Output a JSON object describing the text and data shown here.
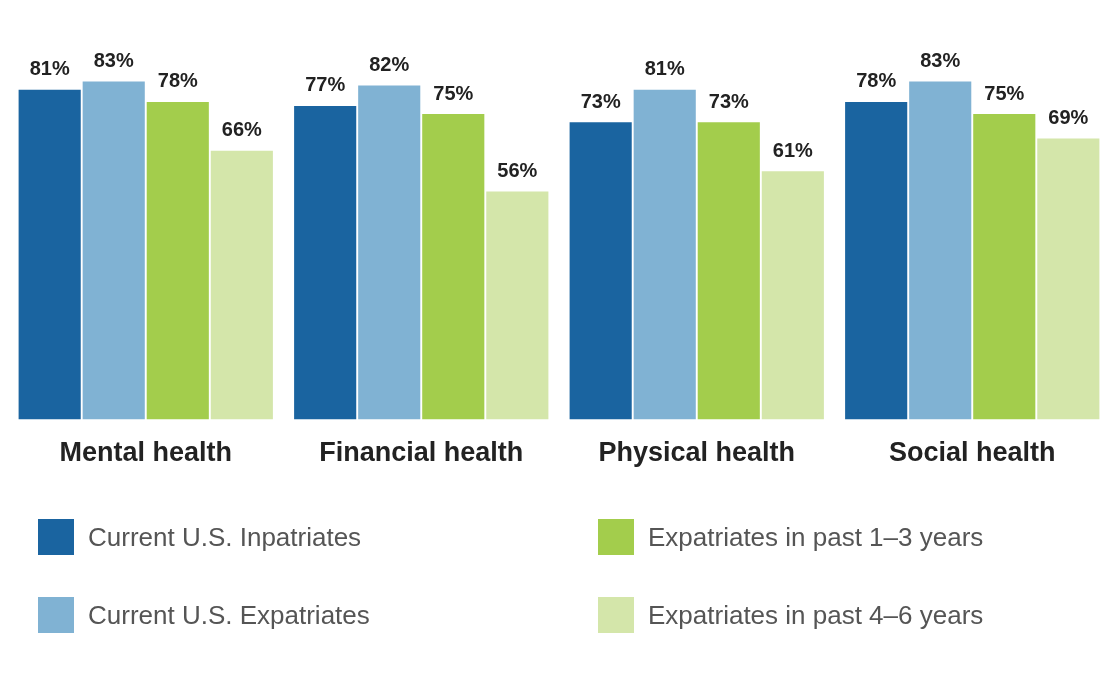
{
  "chart_data": {
    "type": "bar",
    "categories": [
      "Mental health",
      "Financial health",
      "Physical health",
      "Social health"
    ],
    "series": [
      {
        "name": "Current U.S. Inpatriates",
        "color": "#1a64a0",
        "values": [
          81,
          77,
          73,
          78
        ],
        "value_labels": [
          "81%",
          "77%",
          "73%",
          "78%"
        ]
      },
      {
        "name": "Current U.S. Expatriates",
        "color": "#80b2d3",
        "values": [
          83,
          82,
          81,
          83
        ],
        "value_labels": [
          "83%",
          "82%",
          "81%",
          "83%"
        ]
      },
      {
        "name": "Expatriates in past 1–3 years",
        "color": "#a3cd4c",
        "values": [
          78,
          75,
          73,
          75
        ],
        "value_labels": [
          "78%",
          "75%",
          "73%",
          "75%"
        ]
      },
      {
        "name": "Expatriates in past 4–6 years",
        "color": "#d4e6aa",
        "values": [
          66,
          56,
          61,
          69
        ],
        "value_labels": [
          "66%",
          "56%",
          "61%",
          "69%"
        ]
      }
    ],
    "tick_labels": "x",
    "grid": false,
    "legend": "bottom"
  }
}
